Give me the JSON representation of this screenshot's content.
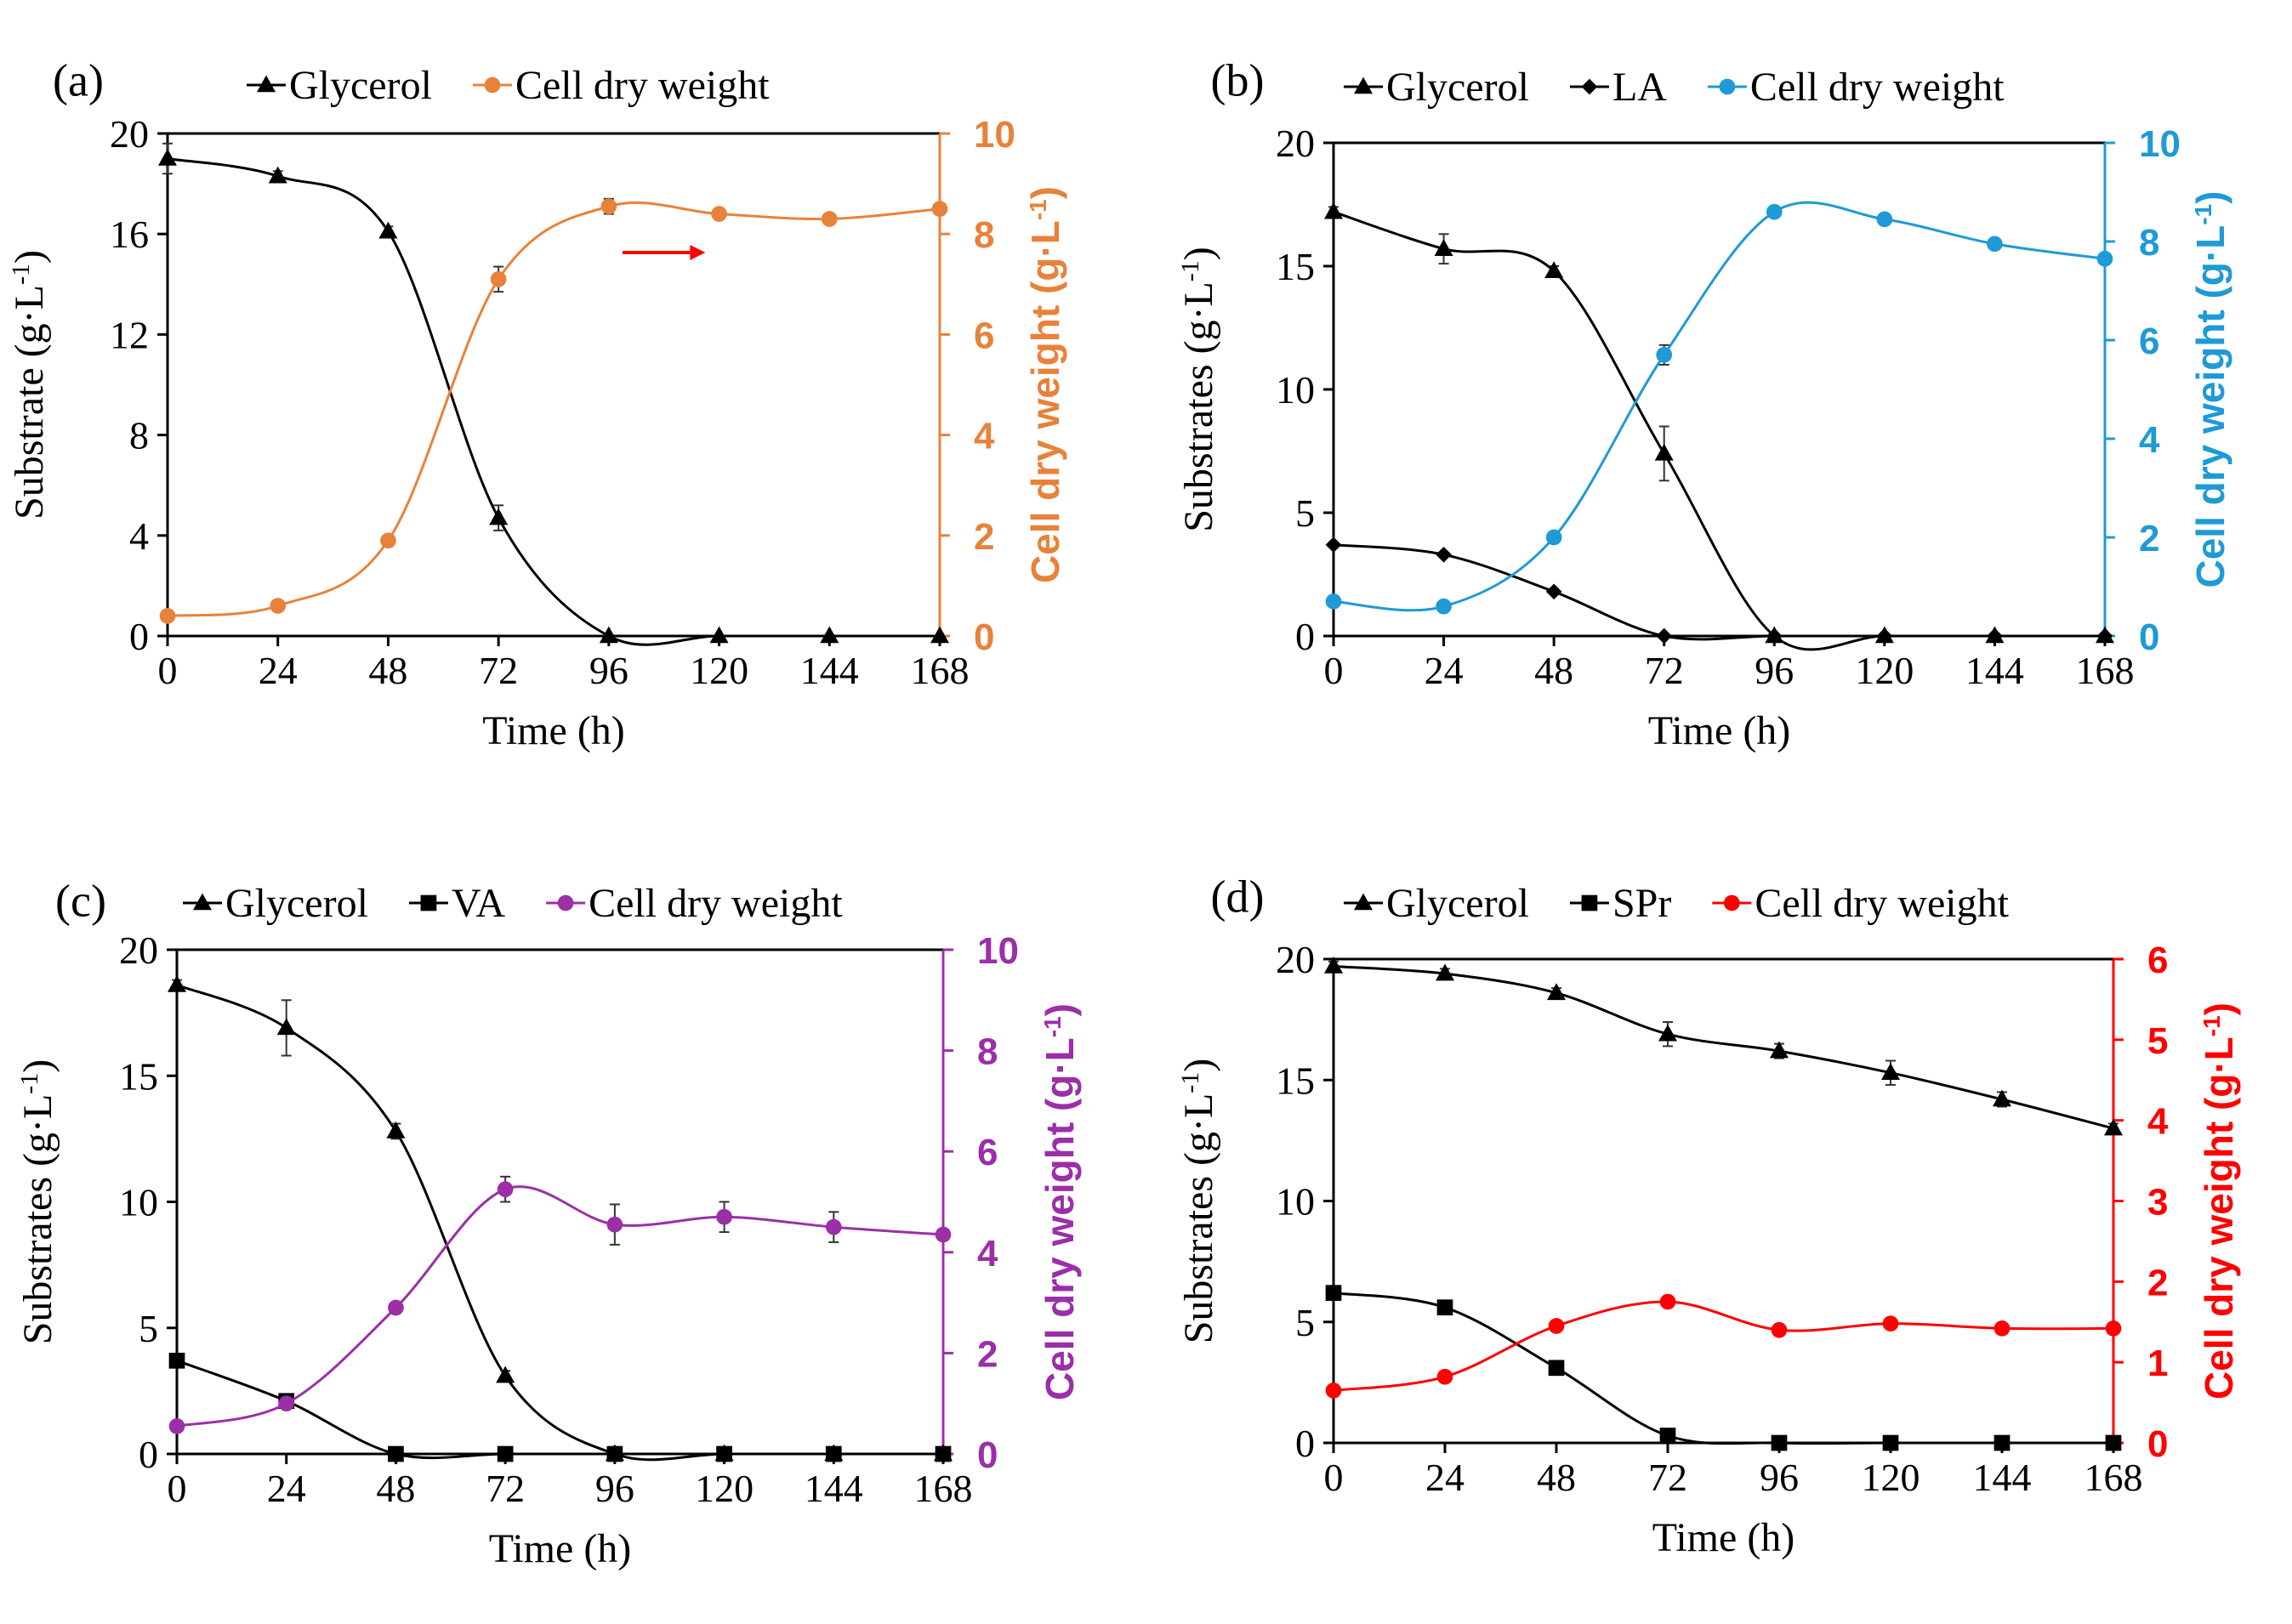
{
  "chart_data": [
    {
      "type": "line",
      "panel_label": "(a)",
      "title": "",
      "xlabel": "Time (h)",
      "ylabel_left": "Substrate (g·L",
      "ylabel_right": "Cell dry weight (g·L",
      "ylabel_unit_sup": "-1",
      "ylabel_unit_close": ")",
      "x": [
        0,
        24,
        48,
        72,
        96,
        120,
        144,
        168
      ],
      "xticks": [
        "0",
        "24",
        "48",
        "72",
        "96",
        "120",
        "144",
        "168"
      ],
      "xlim": [
        0,
        168
      ],
      "ylim_left": [
        0,
        20
      ],
      "yticks_left": [
        "0",
        "4",
        "8",
        "12",
        "16",
        "20"
      ],
      "ylim_right": [
        0,
        10
      ],
      "yticks_right": [
        "0",
        "2",
        "4",
        "6",
        "8",
        "10"
      ],
      "right_color": "#E8823A",
      "legend_position": "top",
      "annotation": "red arrow pointing right",
      "annotation_color": "#FF0000",
      "series": [
        {
          "name": "Glycerol",
          "axis": "left",
          "marker": "triangle",
          "color": "#000000",
          "values": [
            19.0,
            18.3,
            16.1,
            4.7,
            0,
            0,
            0,
            0
          ],
          "errors": [
            0.6,
            0.2,
            0.2,
            0.5,
            0,
            0,
            0,
            0
          ]
        },
        {
          "name": "Cell dry weight",
          "axis": "right",
          "marker": "circle",
          "color": "#E8823A",
          "values": [
            0.4,
            0.6,
            1.9,
            7.1,
            8.55,
            8.4,
            8.3,
            8.5
          ],
          "errors": [
            0.05,
            0.05,
            0.1,
            0.25,
            0.15,
            0.1,
            0.1,
            0.1
          ]
        }
      ]
    },
    {
      "type": "line",
      "panel_label": "(b)",
      "title": "",
      "xlabel": "Time (h)",
      "ylabel_left": "Substrates (g·L",
      "ylabel_right": "Cell dry weight (g·L",
      "ylabel_unit_sup": "-1",
      "ylabel_unit_close": ")",
      "x": [
        0,
        24,
        48,
        72,
        96,
        120,
        144,
        168
      ],
      "xticks": [
        "0",
        "24",
        "48",
        "72",
        "96",
        "120",
        "144",
        "168"
      ],
      "xlim": [
        0,
        168
      ],
      "ylim_left": [
        0,
        20
      ],
      "yticks_left": [
        "0",
        "5",
        "10",
        "15",
        "20"
      ],
      "ylim_right": [
        0,
        10
      ],
      "yticks_right": [
        "0",
        "2",
        "4",
        "6",
        "8",
        "10"
      ],
      "right_color": "#1E9AD6",
      "legend_position": "top",
      "series": [
        {
          "name": "Glycerol",
          "axis": "left",
          "marker": "triangle",
          "color": "#000000",
          "values": [
            17.2,
            15.7,
            14.8,
            7.4,
            0,
            0,
            0,
            0
          ],
          "errors": [
            0.2,
            0.6,
            0.2,
            1.1,
            0,
            0,
            0,
            0
          ]
        },
        {
          "name": "LA",
          "axis": "left",
          "marker": "diamond",
          "color": "#000000",
          "values": [
            3.7,
            3.3,
            1.8,
            0,
            0,
            0,
            0,
            0
          ],
          "errors": [
            0,
            0,
            0,
            0,
            0,
            0,
            0,
            0
          ]
        },
        {
          "name": "Cell dry weight",
          "axis": "right",
          "marker": "circle",
          "color": "#1E9AD6",
          "values": [
            0.7,
            0.6,
            2.0,
            5.7,
            8.6,
            8.45,
            7.95,
            7.65
          ],
          "errors": [
            0.05,
            0.05,
            0.1,
            0.2,
            0.1,
            0.1,
            0.1,
            0.1
          ]
        }
      ]
    },
    {
      "type": "line",
      "panel_label": "(c)",
      "title": "",
      "xlabel": "Time (h)",
      "ylabel_left": "Substrates (g·L",
      "ylabel_right": "Cell dry weight (g·L",
      "ylabel_unit_sup": "-1",
      "ylabel_unit_close": ")",
      "x": [
        0,
        24,
        48,
        72,
        96,
        120,
        144,
        168
      ],
      "xticks": [
        "0",
        "24",
        "48",
        "72",
        "96",
        "120",
        "144",
        "168"
      ],
      "xlim": [
        0,
        168
      ],
      "ylim_left": [
        0,
        20
      ],
      "yticks_left": [
        "0",
        "5",
        "10",
        "15",
        "20"
      ],
      "ylim_right": [
        0,
        10
      ],
      "yticks_right": [
        "0",
        "2",
        "4",
        "6",
        "8",
        "10"
      ],
      "right_color": "#9B2FA8",
      "legend_position": "top",
      "series": [
        {
          "name": "Glycerol",
          "axis": "left",
          "marker": "triangle",
          "color": "#000000",
          "values": [
            18.6,
            16.9,
            12.8,
            3.1,
            0,
            0,
            0,
            0
          ],
          "errors": [
            0.2,
            1.1,
            0.3,
            0.2,
            0,
            0,
            0,
            0
          ]
        },
        {
          "name": "VA",
          "axis": "left",
          "marker": "square",
          "color": "#000000",
          "values": [
            3.7,
            2.1,
            0,
            0,
            0,
            0,
            0,
            0
          ],
          "errors": [
            0,
            0,
            0,
            0,
            0,
            0,
            0,
            0
          ]
        },
        {
          "name": "Cell dry weight",
          "axis": "right",
          "marker": "circle",
          "color": "#9B2FA8",
          "values": [
            0.55,
            1.0,
            2.9,
            5.25,
            4.55,
            4.7,
            4.5,
            4.35
          ],
          "errors": [
            0.05,
            0.05,
            0.1,
            0.25,
            0.4,
            0.3,
            0.3,
            0.1
          ]
        }
      ]
    },
    {
      "type": "line",
      "panel_label": "(d)",
      "title": "",
      "xlabel": "Time (h)",
      "ylabel_left": "Substrates (g·L",
      "ylabel_right": "Cell dry weight (g·L",
      "ylabel_unit_sup": "-1",
      "ylabel_unit_close": ")",
      "x": [
        0,
        24,
        48,
        72,
        96,
        120,
        144,
        168
      ],
      "xticks": [
        "0",
        "24",
        "48",
        "72",
        "96",
        "120",
        "144",
        "168"
      ],
      "xlim": [
        0,
        168
      ],
      "ylim_left": [
        0,
        20
      ],
      "yticks_left": [
        "0",
        "5",
        "10",
        "15",
        "20"
      ],
      "ylim_right": [
        0,
        6
      ],
      "yticks_right": [
        "0",
        "1",
        "2",
        "3",
        "4",
        "5",
        "6"
      ],
      "right_color": "#FF0000",
      "legend_position": "top",
      "series": [
        {
          "name": "Glycerol",
          "axis": "left",
          "marker": "triangle",
          "color": "#000000",
          "values": [
            19.7,
            19.4,
            18.6,
            16.9,
            16.2,
            15.3,
            14.2,
            13.0
          ],
          "errors": [
            0.2,
            0.2,
            0.2,
            0.5,
            0.3,
            0.5,
            0.3,
            0.2
          ]
        },
        {
          "name": "SPr",
          "axis": "left",
          "marker": "square",
          "color": "#000000",
          "values": [
            6.2,
            5.6,
            3.1,
            0.3,
            0,
            0,
            0,
            0
          ],
          "errors": [
            0,
            0,
            0,
            0,
            0,
            0,
            0,
            0
          ]
        },
        {
          "name": "Cell dry weight",
          "axis": "right",
          "marker": "circle",
          "color": "#FF0000",
          "values": [
            0.65,
            0.82,
            1.45,
            1.75,
            1.4,
            1.48,
            1.42,
            1.42
          ],
          "errors": [
            0,
            0,
            0,
            0,
            0,
            0,
            0,
            0
          ]
        }
      ]
    }
  ]
}
